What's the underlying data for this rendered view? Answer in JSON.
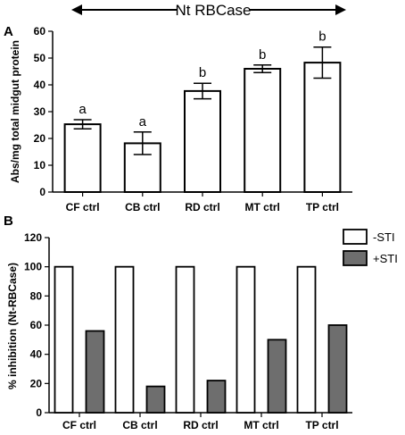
{
  "header": {
    "label": "Nt RBCase"
  },
  "chart_data": [
    {
      "panel": "A",
      "type": "bar",
      "ylabel": "Abs/mg total midgut protein",
      "ylim": [
        0,
        60
      ],
      "yticks": [
        0,
        10,
        20,
        30,
        40,
        50,
        60
      ],
      "categories": [
        "CF ctrl",
        "CB ctrl",
        "RD ctrl",
        "MT ctrl",
        "TP ctrl"
      ],
      "values": [
        25.3,
        18.2,
        37.7,
        46.0,
        48.3
      ],
      "error": [
        1.7,
        4.2,
        2.9,
        1.4,
        5.8
      ],
      "significance": [
        "a",
        "a",
        "b",
        "b",
        "b"
      ],
      "bar_color": "#ffffff",
      "grid": false
    },
    {
      "panel": "B",
      "type": "bar",
      "ylabel": "% inhibition (Nt-RBCase)",
      "ylim": [
        0,
        120
      ],
      "yticks": [
        0,
        20,
        40,
        60,
        80,
        100,
        120
      ],
      "categories": [
        "CF ctrl",
        "CB ctrl",
        "RD ctrl",
        "MT ctrl",
        "TP ctrl"
      ],
      "series": [
        {
          "name": "-STI",
          "values": [
            100,
            100,
            100,
            100,
            100
          ],
          "color": "#ffffff"
        },
        {
          "name": "+STI",
          "values": [
            56,
            18,
            22,
            50,
            60
          ],
          "color": "#6e6e6e"
        }
      ],
      "legend": "top-right",
      "grid": false
    }
  ]
}
